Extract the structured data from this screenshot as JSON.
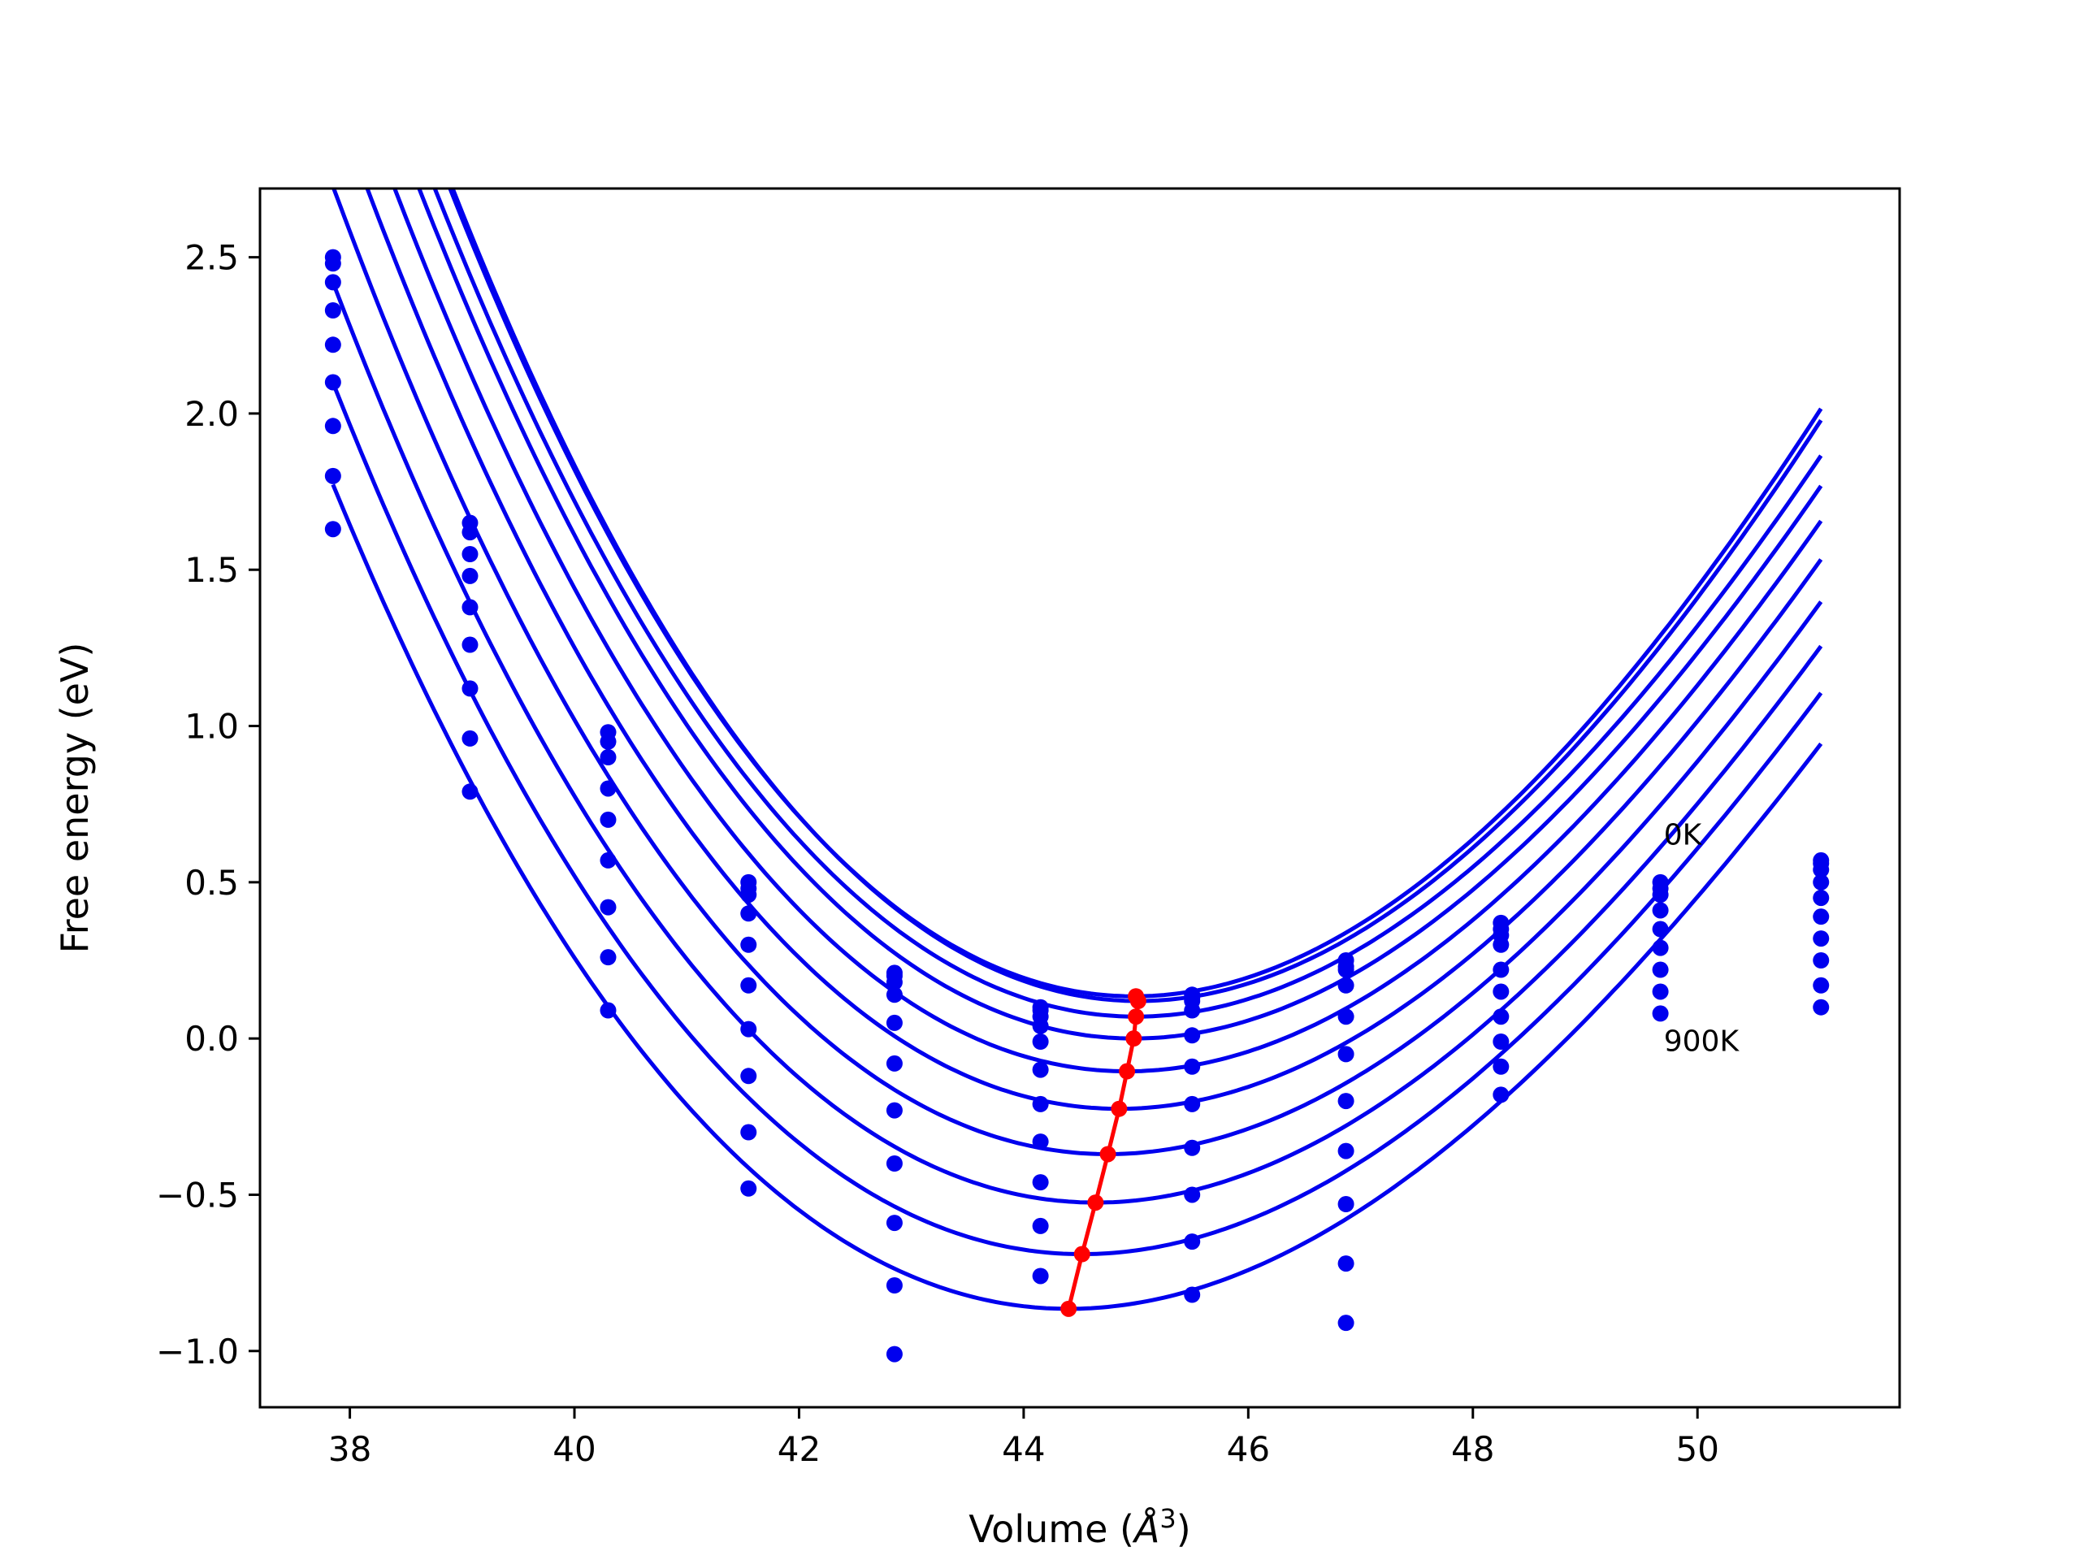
{
  "chart_data": {
    "type": "line",
    "title": "",
    "xlabel": "Volume (",
    "xlabel_symbol": "Å",
    "xlabel_exponent": "3",
    "xlabel_close": ")",
    "ylabel": "Free energy (eV)",
    "xlim": [
      37.2,
      51.8
    ],
    "ylim": [
      -1.18,
      2.72
    ],
    "grid": false,
    "legend": "none",
    "xticks": [
      38,
      40,
      42,
      44,
      46,
      48,
      50
    ],
    "xtick_labels": [
      "38",
      "40",
      "42",
      "44",
      "46",
      "48",
      "50"
    ],
    "yticks": [
      -1.0,
      -0.5,
      0.0,
      0.5,
      1.0,
      1.5,
      2.0,
      2.5
    ],
    "ytick_labels": [
      "−1.0",
      "−0.5",
      "0.0",
      "0.5",
      "1.0",
      "1.5",
      "2.0",
      "2.5"
    ],
    "annotations": [
      {
        "text": "0K",
        "x": 49.7,
        "y": 0.62
      },
      {
        "text": "900K",
        "x": 49.7,
        "y": -0.04
      }
    ],
    "colors": {
      "fit": "#0000ee",
      "points": "#0000ee",
      "minimum": "#ff0000",
      "axes": "#000000"
    },
    "x": [
      37.85,
      39.07,
      40.3,
      41.55,
      42.85,
      44.15,
      45.5,
      46.87,
      48.25,
      49.67,
      51.1
    ],
    "series": [
      {
        "values": [
          2.5,
          1.65,
          0.98,
          0.5,
          0.21,
          0.1,
          0.14,
          0.25,
          0.37,
          0.5,
          0.57
        ]
      },
      {
        "values": [
          2.48,
          1.62,
          0.95,
          0.48,
          0.2,
          0.09,
          0.13,
          0.23,
          0.35,
          0.48,
          0.56
        ]
      },
      {
        "values": [
          2.42,
          1.55,
          0.9,
          0.46,
          0.18,
          0.07,
          0.12,
          0.22,
          0.33,
          0.46,
          0.54
        ]
      },
      {
        "values": [
          2.33,
          1.48,
          0.8,
          0.4,
          0.14,
          0.04,
          0.09,
          0.17,
          0.3,
          0.41,
          0.5
        ]
      },
      {
        "values": [
          2.22,
          1.38,
          0.7,
          0.3,
          0.05,
          -0.01,
          0.01,
          0.07,
          0.22,
          0.35,
          0.45
        ]
      },
      {
        "values": [
          2.1,
          1.26,
          0.57,
          0.17,
          -0.08,
          -0.1,
          -0.09,
          -0.05,
          0.15,
          0.29,
          0.39
        ]
      },
      {
        "values": [
          1.96,
          1.12,
          0.42,
          0.03,
          -0.23,
          -0.21,
          -0.21,
          -0.2,
          0.07,
          0.22,
          0.32
        ]
      },
      {
        "values": [
          1.8,
          0.96,
          0.26,
          -0.12,
          -0.4,
          -0.33,
          -0.35,
          -0.36,
          -0.01,
          0.15,
          0.25
        ]
      },
      {
        "values": [
          1.63,
          0.79,
          0.09,
          -0.3,
          -0.59,
          -0.46,
          -0.5,
          -0.53,
          -0.09,
          0.08,
          0.17
        ]
      },
      {
        "values": [
          null,
          null,
          null,
          -0.48,
          -0.79,
          -0.6,
          -0.65,
          -0.72,
          -0.18,
          null,
          0.1
        ]
      },
      {
        "values": [
          null,
          null,
          null,
          null,
          -1.01,
          -0.76,
          -0.82,
          -0.91,
          null,
          null,
          null
        ]
      }
    ],
    "fit_curves": [
      {
        "vmin": 44.98,
        "fmin": 0.135,
        "curv": 0.06
      },
      {
        "vmin": 45.02,
        "fmin": 0.12,
        "curv": 0.06
      },
      {
        "vmin": 45.0,
        "fmin": 0.07,
        "curv": 0.058
      },
      {
        "vmin": 44.98,
        "fmin": 0.0,
        "curv": 0.057
      },
      {
        "vmin": 44.92,
        "fmin": -0.105,
        "curv": 0.056
      },
      {
        "vmin": 44.85,
        "fmin": -0.225,
        "curv": 0.055
      },
      {
        "vmin": 44.75,
        "fmin": -0.37,
        "curv": 0.054
      },
      {
        "vmin": 44.64,
        "fmin": -0.525,
        "curv": 0.053
      },
      {
        "vmin": 44.52,
        "fmin": -0.69,
        "curv": 0.052
      },
      {
        "vmin": 44.4,
        "fmin": -0.865,
        "curv": 0.051
      }
    ],
    "minimum_path": {
      "x": [
        45.0,
        45.02,
        45.0,
        44.98,
        44.92,
        44.85,
        44.75,
        44.64,
        44.52,
        44.4
      ],
      "y": [
        0.135,
        0.12,
        0.07,
        0.0,
        -0.105,
        -0.225,
        -0.37,
        -0.525,
        -0.69,
        -0.865
      ]
    }
  }
}
